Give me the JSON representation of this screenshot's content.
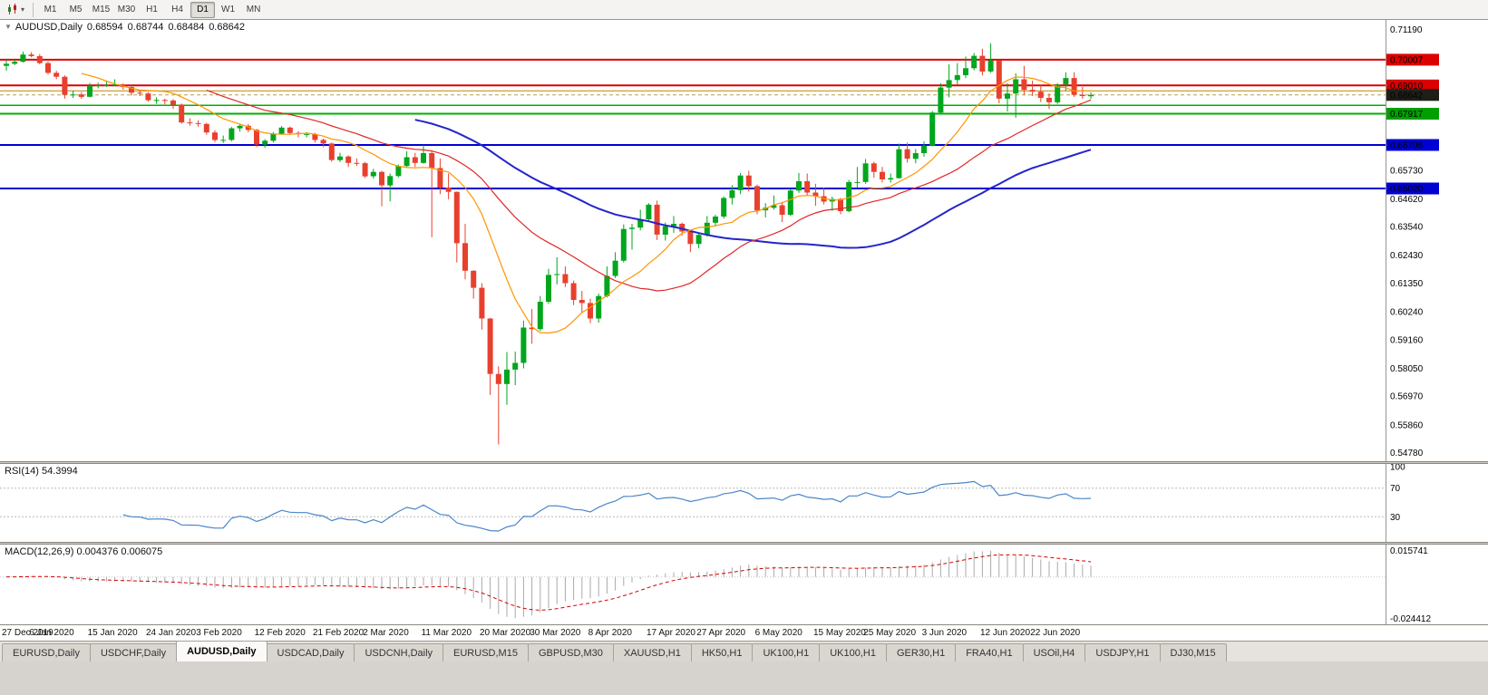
{
  "toolbar": {
    "timeframes": [
      "M1",
      "M5",
      "M15",
      "M30",
      "H1",
      "H4",
      "D1",
      "W1",
      "MN"
    ],
    "active_timeframe": "D1"
  },
  "chart": {
    "collapse_icon": "▼",
    "symbol_title": "AUDUSD,Daily",
    "ohlc": {
      "open": "0.68594",
      "high": "0.68744",
      "low": "0.68484",
      "close": "0.68642"
    },
    "colors": {
      "bull": "#00a61d",
      "bear": "#e8402e",
      "ma_fast": "#ff9500",
      "ma_mid": "#e02727",
      "ma_slow": "#2424cc",
      "rsi_line": "#4a86c8",
      "macd_bar": "#aaaaaa",
      "macd_signal": "#d40000"
    }
  },
  "rsi_panel": {
    "label": "RSI(14) 54.3994",
    "axis_labels": [
      "100",
      "70",
      "30"
    ],
    "level_lines": [
      70,
      30
    ]
  },
  "macd_panel": {
    "label": "MACD(12,26,9) 0.004376 0.006075",
    "max_label": "0.015741",
    "min_label": "-0.024412"
  },
  "tabs": {
    "items": [
      "EURUSD,Daily",
      "USDCHF,Daily",
      "AUDUSD,Daily",
      "USDCAD,Daily",
      "USDCNH,Daily",
      "EURUSD,M15",
      "GBPUSD,M30",
      "XAUUSD,H1",
      "HK50,H1",
      "UK100,H1",
      "UK100,H1",
      "GER30,H1",
      "FRA40,H1",
      "USOil,H4",
      "USDJPY,H1",
      "DJ30,M15"
    ],
    "active_index": 2
  },
  "chart_data": {
    "type": "candlestick",
    "title": "AUDUSD,Daily",
    "y_range": [
      0.5445,
      0.7155
    ],
    "y_axis_ticks": [
      "0.71190",
      "0.65730",
      "0.64620",
      "0.63540",
      "0.62430",
      "0.61350",
      "0.60240",
      "0.59160",
      "0.58050",
      "0.56970",
      "0.55860",
      "0.54780"
    ],
    "levels": [
      {
        "price": 0.70007,
        "label": "0.70007",
        "color": "#dd0000",
        "badge": "#dd0000",
        "width": 2
      },
      {
        "price": 0.6901,
        "label": "0.69010",
        "color": "#dd0000",
        "badge": "#dd0000",
        "width": 2
      },
      {
        "price": 0.688,
        "label": "",
        "color": "#b8860b",
        "badge": "",
        "width": 1
      },
      {
        "price": 0.68642,
        "label": "0.68642",
        "color": "#b8a04a",
        "badge": "#1f1f18",
        "width": 1,
        "dashed": true
      },
      {
        "price": 0.6824,
        "label": "",
        "color": "#00b200",
        "badge": "",
        "width": 1.5
      },
      {
        "price": 0.67917,
        "label": "0.67917",
        "color": "#00b200",
        "badge": "#00a000",
        "width": 2
      },
      {
        "price": 0.66706,
        "label": "0.66706",
        "color": "#0000d4",
        "badge": "#0000d4",
        "width": 2
      },
      {
        "price": 0.6502,
        "label": "0.65020",
        "color": "#0000d4",
        "badge": "#0000d4",
        "width": 2
      }
    ],
    "x_tick_labels": [
      "27 Dec 2019",
      "6 Jan 2020",
      "15 Jan 2020",
      "24 Jan 2020",
      "3 Feb 2020",
      "12 Feb 2020",
      "21 Feb 2020",
      "2 Mar 2020",
      "11 Mar 2020",
      "20 Mar 2020",
      "30 Mar 2020",
      "8 Apr 2020",
      "17 Apr 2020",
      "27 Apr 2020",
      "6 May 2020",
      "15 May 2020",
      "25 May 2020",
      "3 Jun 2020",
      "12 Jun 2020",
      "22 Jun 2020"
    ],
    "x_tick_indices": [
      0,
      6,
      13,
      20,
      26,
      33,
      40,
      46,
      53,
      60,
      66,
      73,
      80,
      86,
      93,
      100,
      106,
      113,
      120,
      126
    ],
    "candles": [
      [
        0.6977,
        0.7005,
        0.6958,
        0.6985
      ],
      [
        0.6985,
        0.7,
        0.698,
        0.6993
      ],
      [
        0.6993,
        0.7032,
        0.699,
        0.7021
      ],
      [
        0.7021,
        0.703,
        0.701,
        0.7015
      ],
      [
        0.7015,
        0.7023,
        0.6983,
        0.6988
      ],
      [
        0.6988,
        0.6994,
        0.6944,
        0.695
      ],
      [
        0.695,
        0.6958,
        0.6925,
        0.6935
      ],
      [
        0.6935,
        0.694,
        0.685,
        0.6865
      ],
      [
        0.6865,
        0.688,
        0.6853,
        0.6866
      ],
      [
        0.6866,
        0.6875,
        0.6849,
        0.6857
      ],
      [
        0.6857,
        0.6911,
        0.6855,
        0.69
      ],
      [
        0.69,
        0.6912,
        0.689,
        0.6902
      ],
      [
        0.6902,
        0.692,
        0.6896,
        0.6903
      ],
      [
        0.6903,
        0.6925,
        0.6898,
        0.6905
      ],
      [
        0.6905,
        0.6909,
        0.6885,
        0.6895
      ],
      [
        0.6895,
        0.69,
        0.6862,
        0.6873
      ],
      [
        0.6873,
        0.6884,
        0.686,
        0.687
      ],
      [
        0.687,
        0.6875,
        0.6838,
        0.6844
      ],
      [
        0.6844,
        0.6855,
        0.683,
        0.6845
      ],
      [
        0.6845,
        0.685,
        0.6828,
        0.6843
      ],
      [
        0.6843,
        0.6848,
        0.681,
        0.6827
      ],
      [
        0.6827,
        0.6831,
        0.6753,
        0.6758
      ],
      [
        0.6758,
        0.6774,
        0.6745,
        0.6755
      ],
      [
        0.6755,
        0.6766,
        0.6741,
        0.6752
      ],
      [
        0.6752,
        0.6756,
        0.671,
        0.6719
      ],
      [
        0.6719,
        0.6728,
        0.6682,
        0.669
      ],
      [
        0.669,
        0.6707,
        0.6678,
        0.669
      ],
      [
        0.669,
        0.674,
        0.6685,
        0.6735
      ],
      [
        0.6735,
        0.675,
        0.6722,
        0.6745
      ],
      [
        0.6745,
        0.6752,
        0.672,
        0.6729
      ],
      [
        0.6729,
        0.6733,
        0.6662,
        0.6672
      ],
      [
        0.6672,
        0.6693,
        0.666,
        0.6687
      ],
      [
        0.6687,
        0.6721,
        0.668,
        0.6714
      ],
      [
        0.6714,
        0.6744,
        0.671,
        0.6738
      ],
      [
        0.6738,
        0.6742,
        0.671,
        0.6717
      ],
      [
        0.6717,
        0.6724,
        0.67,
        0.6713
      ],
      [
        0.6713,
        0.672,
        0.67,
        0.6713
      ],
      [
        0.6713,
        0.6717,
        0.668,
        0.669
      ],
      [
        0.669,
        0.6695,
        0.6662,
        0.6676
      ],
      [
        0.6676,
        0.668,
        0.6606,
        0.6612
      ],
      [
        0.6612,
        0.664,
        0.6604,
        0.6626
      ],
      [
        0.6626,
        0.663,
        0.6585,
        0.6601
      ],
      [
        0.6601,
        0.6618,
        0.6589,
        0.66
      ],
      [
        0.66,
        0.6605,
        0.6542,
        0.6549
      ],
      [
        0.6549,
        0.6578,
        0.654,
        0.6566
      ],
      [
        0.6566,
        0.657,
        0.6433,
        0.6514
      ],
      [
        0.6514,
        0.656,
        0.6452,
        0.655
      ],
      [
        0.655,
        0.6595,
        0.6545,
        0.6589
      ],
      [
        0.6589,
        0.6646,
        0.6585,
        0.6623
      ],
      [
        0.6623,
        0.664,
        0.6585,
        0.6601
      ],
      [
        0.6601,
        0.667,
        0.6598,
        0.6639
      ],
      [
        0.6639,
        0.6648,
        0.6313,
        0.6581
      ],
      [
        0.6581,
        0.6618,
        0.648,
        0.6505
      ],
      [
        0.6505,
        0.656,
        0.646,
        0.6489
      ],
      [
        0.6489,
        0.649,
        0.6215,
        0.629
      ],
      [
        0.629,
        0.6365,
        0.615,
        0.6183
      ],
      [
        0.6183,
        0.6185,
        0.6075,
        0.6117
      ],
      [
        0.6117,
        0.6135,
        0.5955,
        0.5998
      ],
      [
        0.5998,
        0.6,
        0.5702,
        0.5783
      ],
      [
        0.5783,
        0.5813,
        0.551,
        0.5744
      ],
      [
        0.5744,
        0.5868,
        0.5664,
        0.58
      ],
      [
        0.58,
        0.587,
        0.574,
        0.5826
      ],
      [
        0.5826,
        0.599,
        0.5805,
        0.5963
      ],
      [
        0.5963,
        0.6035,
        0.59,
        0.5957
      ],
      [
        0.5957,
        0.6085,
        0.595,
        0.6063
      ],
      [
        0.6063,
        0.619,
        0.6055,
        0.6167
      ],
      [
        0.6167,
        0.6235,
        0.613,
        0.617
      ],
      [
        0.617,
        0.62,
        0.612,
        0.6135
      ],
      [
        0.6135,
        0.6145,
        0.605,
        0.607
      ],
      [
        0.607,
        0.6105,
        0.602,
        0.6058
      ],
      [
        0.6058,
        0.6075,
        0.598,
        0.5998
      ],
      [
        0.5998,
        0.6095,
        0.5982,
        0.6085
      ],
      [
        0.6085,
        0.62,
        0.608,
        0.6163
      ],
      [
        0.6163,
        0.6255,
        0.6155,
        0.6222
      ],
      [
        0.6222,
        0.6363,
        0.6215,
        0.6345
      ],
      [
        0.6345,
        0.6365,
        0.6265,
        0.635
      ],
      [
        0.635,
        0.642,
        0.634,
        0.6382
      ],
      [
        0.6382,
        0.6445,
        0.6375,
        0.6439
      ],
      [
        0.6439,
        0.6455,
        0.6302,
        0.6323
      ],
      [
        0.6323,
        0.637,
        0.63,
        0.6356
      ],
      [
        0.6356,
        0.6395,
        0.633,
        0.6365
      ],
      [
        0.6365,
        0.637,
        0.632,
        0.6335
      ],
      [
        0.6335,
        0.634,
        0.6255,
        0.6287
      ],
      [
        0.6287,
        0.633,
        0.627,
        0.6322
      ],
      [
        0.6322,
        0.6395,
        0.6315,
        0.6369
      ],
      [
        0.6369,
        0.64,
        0.6355,
        0.6393
      ],
      [
        0.6393,
        0.6471,
        0.6385,
        0.6465
      ],
      [
        0.6465,
        0.6515,
        0.644,
        0.6495
      ],
      [
        0.6495,
        0.6562,
        0.648,
        0.6552
      ],
      [
        0.6552,
        0.657,
        0.649,
        0.6511
      ],
      [
        0.6511,
        0.6517,
        0.6402,
        0.6417
      ],
      [
        0.6417,
        0.6445,
        0.639,
        0.6427
      ],
      [
        0.6427,
        0.6475,
        0.642,
        0.6437
      ],
      [
        0.6437,
        0.645,
        0.6372,
        0.64
      ],
      [
        0.64,
        0.65,
        0.6395,
        0.6494
      ],
      [
        0.6494,
        0.6562,
        0.6485,
        0.653
      ],
      [
        0.653,
        0.656,
        0.6475,
        0.6486
      ],
      [
        0.6486,
        0.652,
        0.6435,
        0.6472
      ],
      [
        0.6472,
        0.6505,
        0.644,
        0.6451
      ],
      [
        0.6451,
        0.647,
        0.6415,
        0.6461
      ],
      [
        0.6461,
        0.6465,
        0.6402,
        0.6414
      ],
      [
        0.6414,
        0.6535,
        0.641,
        0.6527
      ],
      [
        0.6527,
        0.6585,
        0.6505,
        0.6527
      ],
      [
        0.6527,
        0.6616,
        0.652,
        0.6599
      ],
      [
        0.6599,
        0.6605,
        0.6543,
        0.6566
      ],
      [
        0.6566,
        0.6585,
        0.6525,
        0.6537
      ],
      [
        0.6537,
        0.656,
        0.6525,
        0.6542
      ],
      [
        0.6542,
        0.6676,
        0.654,
        0.6654
      ],
      [
        0.6654,
        0.668,
        0.6602,
        0.6617
      ],
      [
        0.6617,
        0.6655,
        0.66,
        0.6639
      ],
      [
        0.6639,
        0.6685,
        0.6625,
        0.6668
      ],
      [
        0.6668,
        0.6802,
        0.6665,
        0.6796
      ],
      [
        0.6796,
        0.691,
        0.679,
        0.6893
      ],
      [
        0.6893,
        0.6983,
        0.6855,
        0.6922
      ],
      [
        0.6922,
        0.6988,
        0.6905,
        0.6941
      ],
      [
        0.6941,
        0.7013,
        0.693,
        0.6968
      ],
      [
        0.6968,
        0.7027,
        0.696,
        0.7016
      ],
      [
        0.7016,
        0.7043,
        0.694,
        0.6955
      ],
      [
        0.6955,
        0.7064,
        0.695,
        0.6998
      ],
      [
        0.6998,
        0.7,
        0.6832,
        0.685
      ],
      [
        0.685,
        0.691,
        0.68,
        0.687
      ],
      [
        0.687,
        0.6948,
        0.6776,
        0.6925
      ],
      [
        0.6925,
        0.6977,
        0.6865,
        0.6884
      ],
      [
        0.6884,
        0.692,
        0.686,
        0.6877
      ],
      [
        0.6877,
        0.6905,
        0.6837,
        0.6853
      ],
      [
        0.6853,
        0.687,
        0.681,
        0.6836
      ],
      [
        0.6836,
        0.691,
        0.683,
        0.6905
      ],
      [
        0.6905,
        0.6952,
        0.688,
        0.693
      ],
      [
        0.693,
        0.6952,
        0.6857,
        0.6865
      ],
      [
        0.6865,
        0.6895,
        0.685,
        0.686
      ],
      [
        0.68594,
        0.68744,
        0.68484,
        0.68642
      ]
    ]
  }
}
